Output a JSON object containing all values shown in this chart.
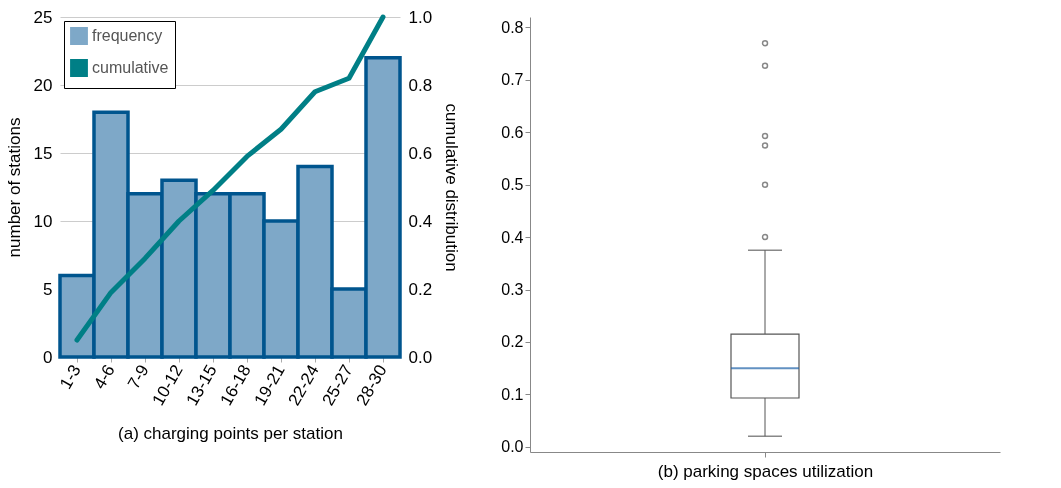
{
  "chart_data": [
    {
      "type": "bar",
      "xlabel": "(a) charging points per station",
      "ylabel": "number of stations",
      "y2label": "cumulative distribution",
      "categories": [
        "1-3",
        "4-6",
        "7-9",
        "10-12",
        "13-15",
        "16-18",
        "19-21",
        "22-24",
        "25-27",
        "28-30"
      ],
      "series": [
        {
          "name": "frequency",
          "color": "#7ea8c8",
          "values": [
            6,
            18,
            12,
            13,
            12,
            12,
            10,
            14,
            5,
            22
          ]
        },
        {
          "name": "cumulative",
          "type": "line",
          "axis": "y2",
          "color": "#007f86",
          "values": [
            0.05,
            0.19,
            0.29,
            0.4,
            0.49,
            0.59,
            0.67,
            0.78,
            0.82,
            1.0
          ]
        }
      ],
      "ylim": [
        0,
        25
      ],
      "yticks": [
        0,
        5,
        10,
        15,
        20,
        25
      ],
      "y2lim": [
        0,
        1
      ],
      "y2ticks": [
        {
          "value": 0,
          "label": "0.0"
        },
        {
          "value": 0.2,
          "label": "0.2"
        },
        {
          "value": 0.4,
          "label": "0.4"
        },
        {
          "value": 0.6,
          "label": "0.6"
        },
        {
          "value": 0.8,
          "label": "0.8"
        },
        {
          "value": 1,
          "label": "1.0"
        }
      ],
      "grid": "y",
      "legend": "top left"
    },
    {
      "type": "box",
      "xlabel": "(b) parking spaces utilization",
      "categories": [
        null
      ],
      "boxes": [
        {
          "low": 0.02,
          "q1": 0.093,
          "median": 0.15,
          "q3": 0.215,
          "high": 0.375,
          "outliers": [
            0.4,
            0.5,
            0.575,
            0.593,
            0.727,
            0.77
          ]
        }
      ],
      "ylim": [
        -0.01,
        0.82
      ],
      "yticks": [
        {
          "value": 0,
          "label": "0.0"
        },
        {
          "value": 0.1,
          "label": "0.1"
        },
        {
          "value": 0.2,
          "label": "0.2"
        },
        {
          "value": 0.3,
          "label": "0.3"
        },
        {
          "value": 0.4,
          "label": "0.4"
        },
        {
          "value": 0.5,
          "label": "0.5"
        },
        {
          "value": 0.6,
          "label": "0.6"
        },
        {
          "value": 0.7,
          "label": "0.7"
        },
        {
          "value": 0.8,
          "label": "0.8"
        }
      ],
      "grid": false
    }
  ]
}
